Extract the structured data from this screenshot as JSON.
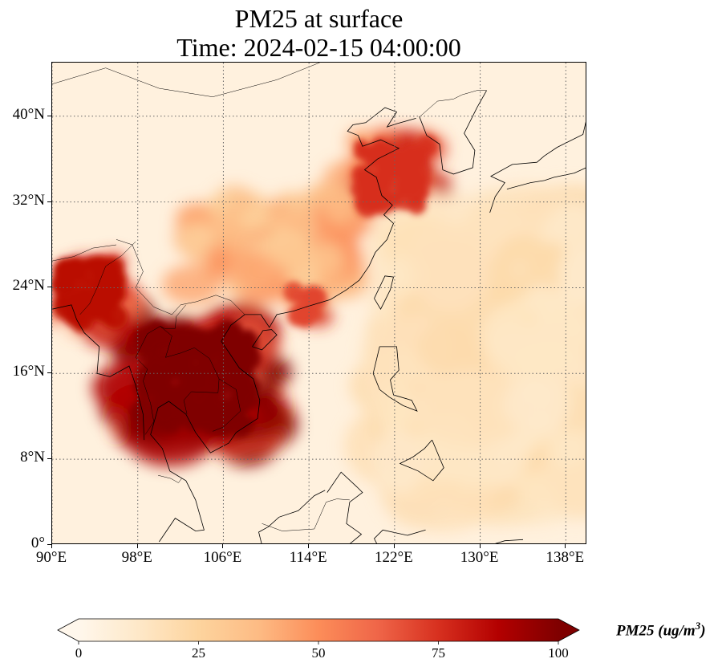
{
  "title_line1": "PM25 at surface",
  "title_line2": "Time: 2024-02-15 04:00:00",
  "map": {
    "extent": {
      "lon_min": 90,
      "lon_max": 140,
      "lat_min": 0,
      "lat_max": 45
    },
    "gridlines": {
      "style": "dotted",
      "lon": [
        90,
        98,
        106,
        114,
        122,
        130,
        138
      ],
      "lat": [
        0,
        8,
        16,
        24,
        32,
        40
      ]
    },
    "lon_tick_labels": [
      "90°E",
      "98°E",
      "106°E",
      "114°E",
      "122°E",
      "130°E",
      "138°E"
    ],
    "lat_tick_labels": [
      "0°",
      "8°N",
      "16°N",
      "24°N",
      "32°N",
      "40°N"
    ],
    "colormap": "OrRd",
    "background_level": 5,
    "hotspots": [
      {
        "region": "Mainland Southeast Asia",
        "lon": [
          97,
          110
        ],
        "lat": [
          10,
          21
        ],
        "value": 100
      },
      {
        "region": "Myanmar-India border",
        "lon": [
          90,
          97
        ],
        "lat": [
          20,
          27
        ],
        "value": 85
      },
      {
        "region": "Yellow Sea coast",
        "lon": [
          118,
          126
        ],
        "lat": [
          31,
          38
        ],
        "value": 75
      },
      {
        "region": "Pearl River Delta",
        "lon": [
          112,
          115
        ],
        "lat": [
          21,
          24
        ],
        "value": 70
      },
      {
        "region": "Central China",
        "lon": [
          103,
          118
        ],
        "lat": [
          24,
          32
        ],
        "value": 45
      },
      {
        "region": "Western Pacific plume",
        "lon": [
          122,
          140
        ],
        "lat": [
          5,
          30
        ],
        "value": 20
      }
    ]
  },
  "colorbar": {
    "min": 0,
    "max": 100,
    "extend": "both",
    "ticks": [
      0,
      25,
      50,
      75,
      100
    ],
    "tick_labels": [
      "0",
      "25",
      "50",
      "75",
      "100"
    ],
    "label": "PM25 (ug/m",
    "label_sup": "3",
    "label_close": ")"
  }
}
